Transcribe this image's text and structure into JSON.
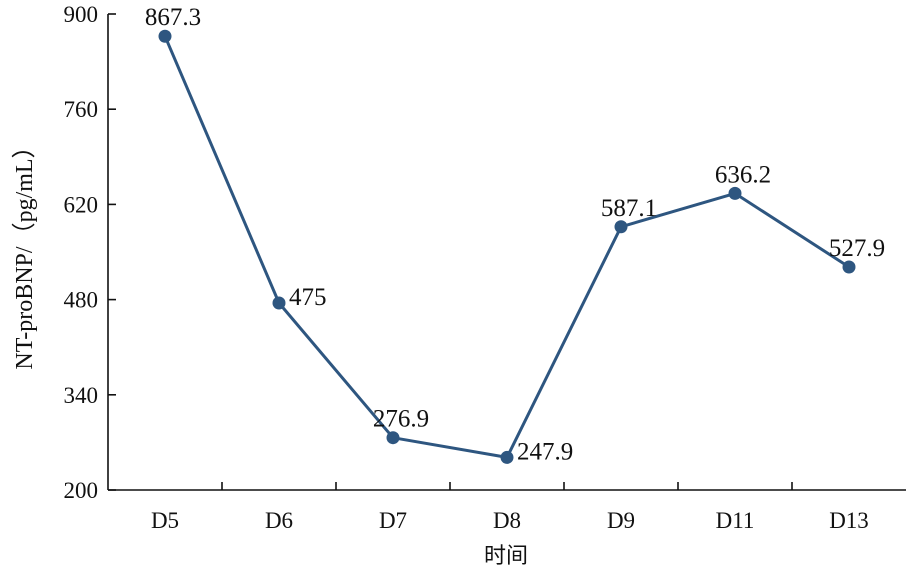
{
  "chart_data": {
    "type": "line",
    "categories": [
      "D5",
      "D6",
      "D7",
      "D8",
      "D9",
      "D11",
      "D13"
    ],
    "series": [
      {
        "values": [
          867.3,
          475,
          276.9,
          247.9,
          587.1,
          636.2,
          527.9
        ]
      }
    ],
    "data_labels": [
      "867.3",
      "475",
      "276.9",
      "247.9",
      "587.1",
      "636.2",
      "527.9"
    ],
    "title": "",
    "xlabel": "时间",
    "ylabel": "NT-proBNP/（pg/mL）",
    "ylim": [
      200,
      900
    ],
    "yticks": [
      200,
      340,
      480,
      620,
      760,
      900
    ],
    "grid": false,
    "line_color": "#2e5680",
    "label_positions": [
      "top",
      "right",
      "top",
      "right",
      "top",
      "top",
      "top"
    ]
  }
}
